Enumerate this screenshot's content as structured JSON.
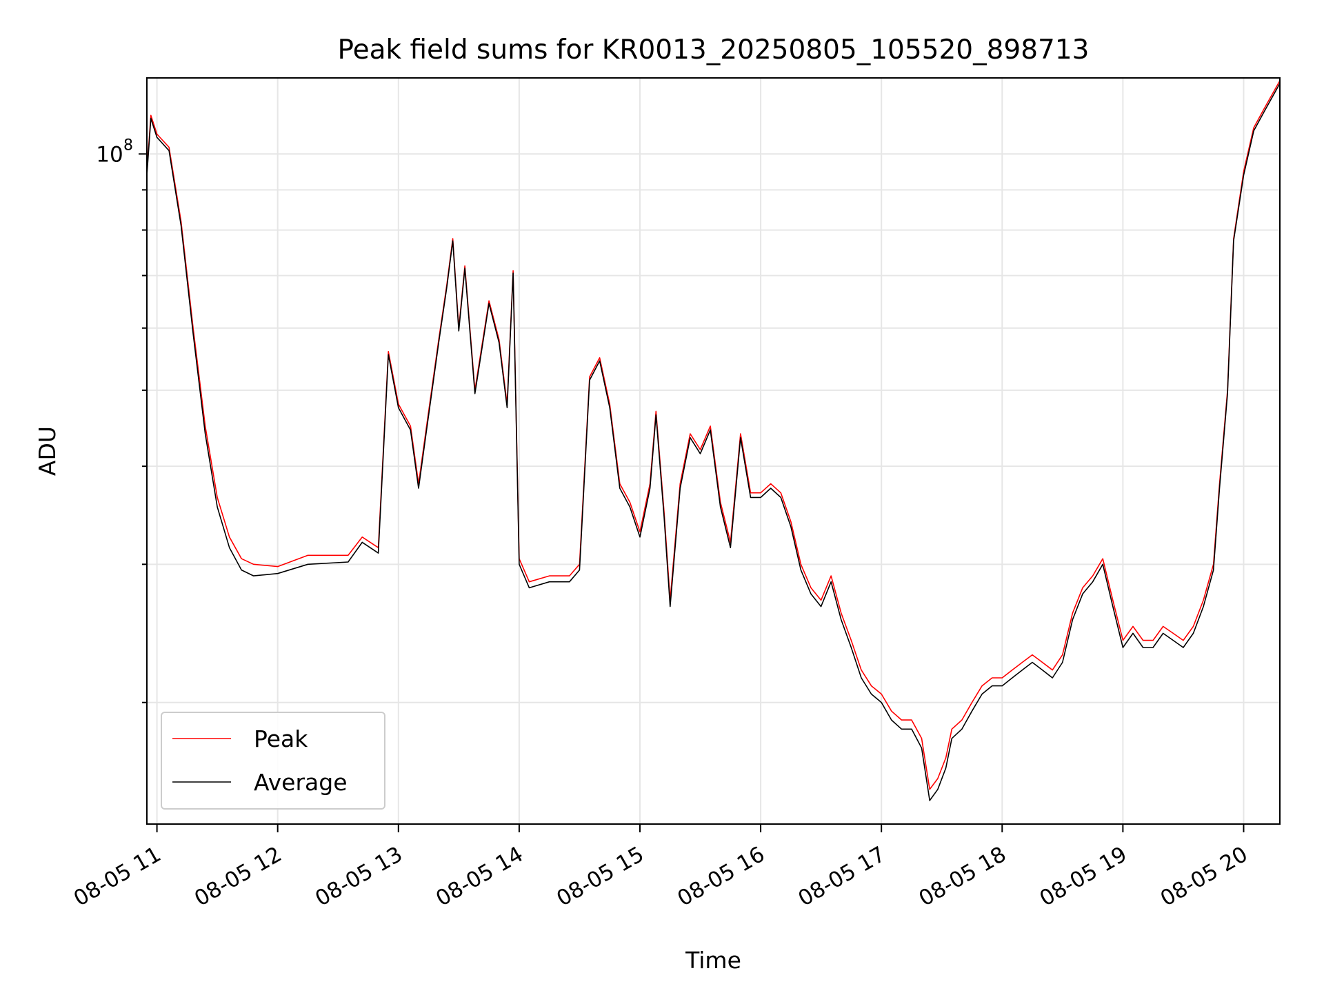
{
  "chart_data": {
    "type": "line",
    "title": "Peak field sums for KR0013_20250805_105520_898713",
    "xlabel": "Time",
    "ylabel": "ADU",
    "x_axis": {
      "kind": "datetime",
      "range": [
        "2025-08-05 10:55",
        "2025-08-05 20:18"
      ],
      "ticks": [
        {
          "value": "2025-08-05 11:00",
          "label": "08-05 11"
        },
        {
          "value": "2025-08-05 12:00",
          "label": "08-05 12"
        },
        {
          "value": "2025-08-05 13:00",
          "label": "08-05 13"
        },
        {
          "value": "2025-08-05 14:00",
          "label": "08-05 14"
        },
        {
          "value": "2025-08-05 15:00",
          "label": "08-05 15"
        },
        {
          "value": "2025-08-05 16:00",
          "label": "08-05 16"
        },
        {
          "value": "2025-08-05 17:00",
          "label": "08-05 17"
        },
        {
          "value": "2025-08-05 18:00",
          "label": "08-05 18"
        },
        {
          "value": "2025-08-05 19:00",
          "label": "08-05 19"
        },
        {
          "value": "2025-08-05 20:00",
          "label": "08-05 20"
        }
      ]
    },
    "y_axis": {
      "scale": "log",
      "range": [
        14000000,
        125000000
      ],
      "major_ticks": [
        {
          "value": 100000000,
          "label_base": "10",
          "label_exp": "8"
        }
      ],
      "minor_ticks": [
        20000000,
        30000000,
        40000000,
        50000000,
        60000000,
        70000000,
        80000000,
        90000000
      ]
    },
    "grid": true,
    "legend_position": "lower-left",
    "series": [
      {
        "name": "Peak",
        "color": "#ff0000",
        "points": [
          [
            "2025-08-05 10:55",
            95000000
          ],
          [
            "2025-08-05 10:57",
            112000000
          ],
          [
            "2025-08-05 11:00",
            106000000
          ],
          [
            "2025-08-05 11:06",
            102000000
          ],
          [
            "2025-08-05 11:12",
            82000000
          ],
          [
            "2025-08-05 11:18",
            60000000
          ],
          [
            "2025-08-05 11:24",
            45000000
          ],
          [
            "2025-08-05 11:30",
            36500000
          ],
          [
            "2025-08-05 11:36",
            32500000
          ],
          [
            "2025-08-05 11:42",
            30500000
          ],
          [
            "2025-08-05 11:48",
            30000000
          ],
          [
            "2025-08-05 12:00",
            29800000
          ],
          [
            "2025-08-05 12:15",
            30800000
          ],
          [
            "2025-08-05 12:35",
            30800000
          ],
          [
            "2025-08-05 12:42",
            32500000
          ],
          [
            "2025-08-05 12:50",
            31500000
          ],
          [
            "2025-08-05 12:55",
            56000000
          ],
          [
            "2025-08-05 13:00",
            48000000
          ],
          [
            "2025-08-05 13:06",
            45000000
          ],
          [
            "2025-08-05 13:10",
            38000000
          ],
          [
            "2025-08-05 13:14",
            45000000
          ],
          [
            "2025-08-05 13:20",
            58000000
          ],
          [
            "2025-08-05 13:24",
            68000000
          ],
          [
            "2025-08-05 13:27",
            78000000
          ],
          [
            "2025-08-05 13:30",
            60000000
          ],
          [
            "2025-08-05 13:33",
            72000000
          ],
          [
            "2025-08-05 13:38",
            50000000
          ],
          [
            "2025-08-05 13:45",
            65000000
          ],
          [
            "2025-08-05 13:50",
            58000000
          ],
          [
            "2025-08-05 13:54",
            48000000
          ],
          [
            "2025-08-05 13:57",
            71000000
          ],
          [
            "2025-08-05 14:00",
            30500000
          ],
          [
            "2025-08-05 14:05",
            28500000
          ],
          [
            "2025-08-05 14:15",
            29000000
          ],
          [
            "2025-08-05 14:25",
            29000000
          ],
          [
            "2025-08-05 14:30",
            30000000
          ],
          [
            "2025-08-05 14:35",
            52000000
          ],
          [
            "2025-08-05 14:40",
            55000000
          ],
          [
            "2025-08-05 14:45",
            48000000
          ],
          [
            "2025-08-05 14:50",
            38000000
          ],
          [
            "2025-08-05 14:55",
            36000000
          ],
          [
            "2025-08-05 15:00",
            33000000
          ],
          [
            "2025-08-05 15:05",
            38000000
          ],
          [
            "2025-08-05 15:08",
            47000000
          ],
          [
            "2025-08-05 15:12",
            35000000
          ],
          [
            "2025-08-05 15:15",
            27000000
          ],
          [
            "2025-08-05 15:20",
            38000000
          ],
          [
            "2025-08-05 15:25",
            44000000
          ],
          [
            "2025-08-05 15:30",
            42000000
          ],
          [
            "2025-08-05 15:35",
            45000000
          ],
          [
            "2025-08-05 15:40",
            36000000
          ],
          [
            "2025-08-05 15:45",
            32000000
          ],
          [
            "2025-08-05 15:50",
            44000000
          ],
          [
            "2025-08-05 15:55",
            37000000
          ],
          [
            "2025-08-05 16:00",
            37000000
          ],
          [
            "2025-08-05 16:05",
            38000000
          ],
          [
            "2025-08-05 16:10",
            37000000
          ],
          [
            "2025-08-05 16:15",
            34000000
          ],
          [
            "2025-08-05 16:20",
            30000000
          ],
          [
            "2025-08-05 16:25",
            28000000
          ],
          [
            "2025-08-05 16:30",
            27000000
          ],
          [
            "2025-08-05 16:35",
            29000000
          ],
          [
            "2025-08-05 16:40",
            26000000
          ],
          [
            "2025-08-05 16:45",
            24000000
          ],
          [
            "2025-08-05 16:50",
            22000000
          ],
          [
            "2025-08-05 16:55",
            21000000
          ],
          [
            "2025-08-05 17:00",
            20500000
          ],
          [
            "2025-08-05 17:05",
            19500000
          ],
          [
            "2025-08-05 17:10",
            19000000
          ],
          [
            "2025-08-05 17:15",
            19000000
          ],
          [
            "2025-08-05 17:20",
            18000000
          ],
          [
            "2025-08-05 17:24",
            15500000
          ],
          [
            "2025-08-05 17:28",
            16000000
          ],
          [
            "2025-08-05 17:32",
            17000000
          ],
          [
            "2025-08-05 17:35",
            18500000
          ],
          [
            "2025-08-05 17:40",
            19000000
          ],
          [
            "2025-08-05 17:45",
            20000000
          ],
          [
            "2025-08-05 17:50",
            21000000
          ],
          [
            "2025-08-05 17:55",
            21500000
          ],
          [
            "2025-08-05 18:00",
            21500000
          ],
          [
            "2025-08-05 18:05",
            22000000
          ],
          [
            "2025-08-05 18:10",
            22500000
          ],
          [
            "2025-08-05 18:15",
            23000000
          ],
          [
            "2025-08-05 18:20",
            22500000
          ],
          [
            "2025-08-05 18:25",
            22000000
          ],
          [
            "2025-08-05 18:30",
            23000000
          ],
          [
            "2025-08-05 18:35",
            26000000
          ],
          [
            "2025-08-05 18:40",
            28000000
          ],
          [
            "2025-08-05 18:45",
            29000000
          ],
          [
            "2025-08-05 18:50",
            30500000
          ],
          [
            "2025-08-05 18:55",
            27000000
          ],
          [
            "2025-08-05 19:00",
            24000000
          ],
          [
            "2025-08-05 19:05",
            25000000
          ],
          [
            "2025-08-05 19:10",
            24000000
          ],
          [
            "2025-08-05 19:15",
            24000000
          ],
          [
            "2025-08-05 19:20",
            25000000
          ],
          [
            "2025-08-05 19:25",
            24500000
          ],
          [
            "2025-08-05 19:30",
            24000000
          ],
          [
            "2025-08-05 19:35",
            25000000
          ],
          [
            "2025-08-05 19:40",
            27000000
          ],
          [
            "2025-08-05 19:45",
            30000000
          ],
          [
            "2025-08-05 19:48",
            38000000
          ],
          [
            "2025-08-05 19:52",
            50000000
          ],
          [
            "2025-08-05 19:55",
            78000000
          ],
          [
            "2025-08-05 20:00",
            95000000
          ],
          [
            "2025-08-05 20:05",
            108000000
          ],
          [
            "2025-08-05 20:10",
            114000000
          ],
          [
            "2025-08-05 20:18",
            124000000
          ]
        ]
      },
      {
        "name": "Average",
        "color": "#000000",
        "points": [
          [
            "2025-08-05 10:55",
            94000000
          ],
          [
            "2025-08-05 10:57",
            111000000
          ],
          [
            "2025-08-05 11:00",
            105000000
          ],
          [
            "2025-08-05 11:06",
            101000000
          ],
          [
            "2025-08-05 11:12",
            81000000
          ],
          [
            "2025-08-05 11:18",
            59000000
          ],
          [
            "2025-08-05 11:24",
            44000000
          ],
          [
            "2025-08-05 11:30",
            35500000
          ],
          [
            "2025-08-05 11:36",
            31500000
          ],
          [
            "2025-08-05 11:42",
            29500000
          ],
          [
            "2025-08-05 11:48",
            29000000
          ],
          [
            "2025-08-05 12:00",
            29200000
          ],
          [
            "2025-08-05 12:15",
            30000000
          ],
          [
            "2025-08-05 12:35",
            30200000
          ],
          [
            "2025-08-05 12:42",
            32000000
          ],
          [
            "2025-08-05 12:50",
            31000000
          ],
          [
            "2025-08-05 12:55",
            55500000
          ],
          [
            "2025-08-05 13:00",
            47500000
          ],
          [
            "2025-08-05 13:06",
            44500000
          ],
          [
            "2025-08-05 13:10",
            37500000
          ],
          [
            "2025-08-05 13:14",
            44500000
          ],
          [
            "2025-08-05 13:20",
            57500000
          ],
          [
            "2025-08-05 13:24",
            67500000
          ],
          [
            "2025-08-05 13:27",
            77500000
          ],
          [
            "2025-08-05 13:30",
            59500000
          ],
          [
            "2025-08-05 13:33",
            71500000
          ],
          [
            "2025-08-05 13:38",
            49500000
          ],
          [
            "2025-08-05 13:45",
            64500000
          ],
          [
            "2025-08-05 13:50",
            57500000
          ],
          [
            "2025-08-05 13:54",
            47500000
          ],
          [
            "2025-08-05 13:57",
            70500000
          ],
          [
            "2025-08-05 14:00",
            30000000
          ],
          [
            "2025-08-05 14:05",
            28000000
          ],
          [
            "2025-08-05 14:15",
            28500000
          ],
          [
            "2025-08-05 14:25",
            28500000
          ],
          [
            "2025-08-05 14:30",
            29500000
          ],
          [
            "2025-08-05 14:35",
            51500000
          ],
          [
            "2025-08-05 14:40",
            54500000
          ],
          [
            "2025-08-05 14:45",
            47500000
          ],
          [
            "2025-08-05 14:50",
            37500000
          ],
          [
            "2025-08-05 14:55",
            35500000
          ],
          [
            "2025-08-05 15:00",
            32500000
          ],
          [
            "2025-08-05 15:05",
            37500000
          ],
          [
            "2025-08-05 15:08",
            46500000
          ],
          [
            "2025-08-05 15:12",
            34500000
          ],
          [
            "2025-08-05 15:15",
            26500000
          ],
          [
            "2025-08-05 15:20",
            37500000
          ],
          [
            "2025-08-05 15:25",
            43500000
          ],
          [
            "2025-08-05 15:30",
            41500000
          ],
          [
            "2025-08-05 15:35",
            44500000
          ],
          [
            "2025-08-05 15:40",
            35500000
          ],
          [
            "2025-08-05 15:45",
            31500000
          ],
          [
            "2025-08-05 15:50",
            43500000
          ],
          [
            "2025-08-05 15:55",
            36500000
          ],
          [
            "2025-08-05 16:00",
            36500000
          ],
          [
            "2025-08-05 16:05",
            37500000
          ],
          [
            "2025-08-05 16:10",
            36500000
          ],
          [
            "2025-08-05 16:15",
            33500000
          ],
          [
            "2025-08-05 16:20",
            29500000
          ],
          [
            "2025-08-05 16:25",
            27500000
          ],
          [
            "2025-08-05 16:30",
            26500000
          ],
          [
            "2025-08-05 16:35",
            28500000
          ],
          [
            "2025-08-05 16:40",
            25500000
          ],
          [
            "2025-08-05 16:45",
            23500000
          ],
          [
            "2025-08-05 16:50",
            21500000
          ],
          [
            "2025-08-05 16:55",
            20500000
          ],
          [
            "2025-08-05 17:00",
            20000000
          ],
          [
            "2025-08-05 17:05",
            19000000
          ],
          [
            "2025-08-05 17:10",
            18500000
          ],
          [
            "2025-08-05 17:15",
            18500000
          ],
          [
            "2025-08-05 17:20",
            17500000
          ],
          [
            "2025-08-05 17:24",
            15000000
          ],
          [
            "2025-08-05 17:28",
            15500000
          ],
          [
            "2025-08-05 17:32",
            16500000
          ],
          [
            "2025-08-05 17:35",
            18000000
          ],
          [
            "2025-08-05 17:40",
            18500000
          ],
          [
            "2025-08-05 17:45",
            19500000
          ],
          [
            "2025-08-05 17:50",
            20500000
          ],
          [
            "2025-08-05 17:55",
            21000000
          ],
          [
            "2025-08-05 18:00",
            21000000
          ],
          [
            "2025-08-05 18:05",
            21500000
          ],
          [
            "2025-08-05 18:10",
            22000000
          ],
          [
            "2025-08-05 18:15",
            22500000
          ],
          [
            "2025-08-05 18:20",
            22000000
          ],
          [
            "2025-08-05 18:25",
            21500000
          ],
          [
            "2025-08-05 18:30",
            22500000
          ],
          [
            "2025-08-05 18:35",
            25500000
          ],
          [
            "2025-08-05 18:40",
            27500000
          ],
          [
            "2025-08-05 18:45",
            28500000
          ],
          [
            "2025-08-05 18:50",
            30000000
          ],
          [
            "2025-08-05 18:55",
            26500000
          ],
          [
            "2025-08-05 19:00",
            23500000
          ],
          [
            "2025-08-05 19:05",
            24500000
          ],
          [
            "2025-08-05 19:10",
            23500000
          ],
          [
            "2025-08-05 19:15",
            23500000
          ],
          [
            "2025-08-05 19:20",
            24500000
          ],
          [
            "2025-08-05 19:25",
            24000000
          ],
          [
            "2025-08-05 19:30",
            23500000
          ],
          [
            "2025-08-05 19:35",
            24500000
          ],
          [
            "2025-08-05 19:40",
            26500000
          ],
          [
            "2025-08-05 19:45",
            29500000
          ],
          [
            "2025-08-05 19:48",
            37500000
          ],
          [
            "2025-08-05 19:52",
            49500000
          ],
          [
            "2025-08-05 19:55",
            77500000
          ],
          [
            "2025-08-05 20:00",
            94000000
          ],
          [
            "2025-08-05 20:05",
            107000000
          ],
          [
            "2025-08-05 20:10",
            113000000
          ],
          [
            "2025-08-05 20:18",
            123000000
          ]
        ]
      }
    ]
  }
}
